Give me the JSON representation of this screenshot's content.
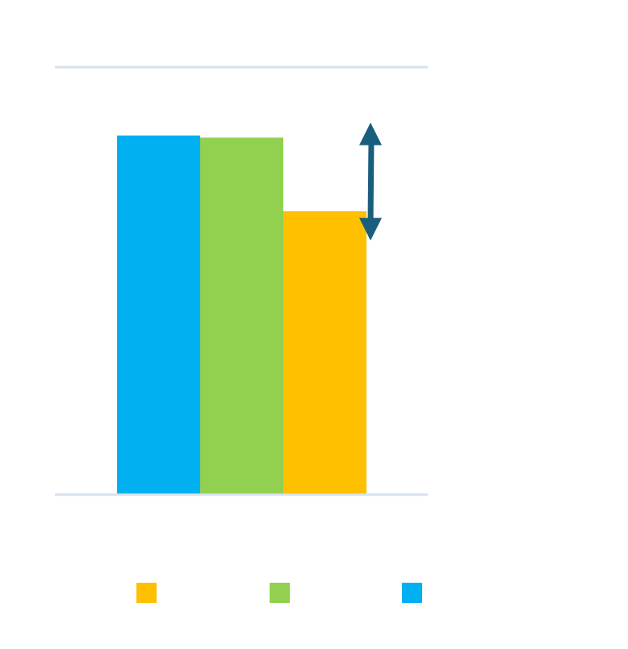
{
  "chart_data": {
    "type": "bar",
    "categories": [
      ""
    ],
    "series": [
      {
        "color": "#00B0F0",
        "values": [
          0.84
        ]
      },
      {
        "color": "#92D050",
        "values": [
          0.835
        ]
      },
      {
        "color": "#FFC000",
        "values": [
          0.663
        ]
      }
    ],
    "ylim": [
      0,
      1
    ],
    "grid": true,
    "gridline_color": "#D6E2EF",
    "legend_colors": [
      "#FFC000",
      "#92D050",
      "#00B0F0"
    ],
    "annotation": {
      "type": "double-arrow",
      "color": "#1A5E7E",
      "from": 0.84,
      "to": 0.6
    }
  }
}
